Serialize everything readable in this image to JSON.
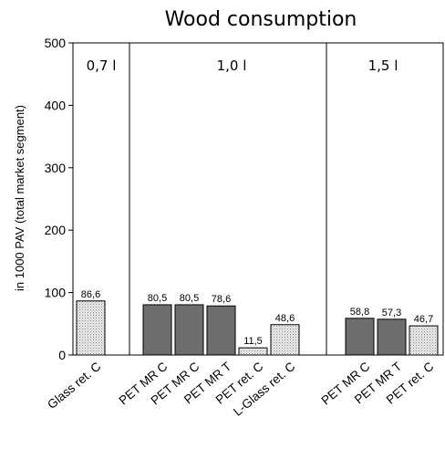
{
  "chart_data": {
    "type": "bar",
    "title": "Wood consumption",
    "ylabel": "in 1000 PAV (total market segment)",
    "xlabel": "",
    "ylim": [
      0,
      500
    ],
    "yticks": [
      0,
      100,
      200,
      300,
      400,
      500
    ],
    "grid": false,
    "groups": [
      {
        "label": "0,7 l",
        "bars": [
          {
            "category": "Glass ret. C",
            "value": 86.6,
            "label": "86,6",
            "style": "light"
          }
        ]
      },
      {
        "label": "1,0 l",
        "bars": [
          {
            "category": "PET MR C",
            "value": 80.5,
            "label": "80,5",
            "style": "dark"
          },
          {
            "category": "PET MR C",
            "value": 80.5,
            "label": "80,5",
            "style": "dark"
          },
          {
            "category": "PET MR T",
            "value": 78.6,
            "label": "78,6",
            "style": "dark"
          },
          {
            "category": "PET ret. C",
            "value": 11.5,
            "label": "11,5",
            "style": "light"
          },
          {
            "category": "L-Glass ret. C",
            "value": 48.6,
            "label": "48,6",
            "style": "light"
          }
        ]
      },
      {
        "label": "1,5 l",
        "bars": [
          {
            "category": "PET MR C",
            "value": 58.8,
            "label": "58,8",
            "style": "dark"
          },
          {
            "category": "PET MR T",
            "value": 57.3,
            "label": "57,3",
            "style": "dark"
          },
          {
            "category": "PET ret. C",
            "value": 46.7,
            "label": "46,7",
            "style": "light"
          }
        ]
      }
    ],
    "colors": {
      "dark": "#6d6d6d",
      "light": "#d2d2d2"
    }
  }
}
